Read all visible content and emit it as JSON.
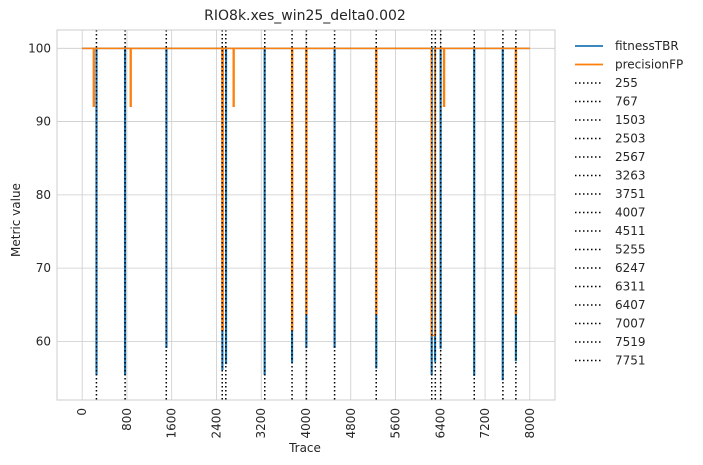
{
  "chart_data": {
    "type": "line",
    "title": "RIO8k.xes_win25_delta0.002",
    "xlabel": "Trace",
    "ylabel": "Metric value",
    "xlim": [
      -450,
      8450
    ],
    "ylim": [
      52,
      102.5
    ],
    "xticks": [
      0,
      800,
      1600,
      2400,
      3200,
      4000,
      4800,
      5600,
      6400,
      7200,
      8000
    ],
    "yticks": [
      60,
      70,
      80,
      90,
      100
    ],
    "grid": true,
    "legend_position": "outside-right",
    "colors": {
      "fitnessTBR": "#1f77b4",
      "precisionFP": "#ff7f0e",
      "drift": "#000000",
      "grid": "#cccccc"
    },
    "series": [
      {
        "name": "fitnessTBR",
        "color": "#1f77b4",
        "x": [
          0,
          250,
          250,
          262,
          262,
          760,
          760,
          772,
          772,
          1500,
          1500,
          1512,
          1512,
          2500,
          2500,
          2512,
          2512,
          2565,
          2565,
          2577,
          2577,
          3255,
          3255,
          3267,
          3267,
          3745,
          3745,
          3757,
          3757,
          4000,
          4000,
          4012,
          4012,
          4505,
          4505,
          4517,
          4517,
          5250,
          5250,
          5262,
          5262,
          6240,
          6240,
          6252,
          6252,
          6300,
          6300,
          6312,
          6312,
          6400,
          6400,
          6412,
          6412,
          7000,
          7000,
          7012,
          7012,
          7510,
          7510,
          7522,
          7522,
          7745,
          7745,
          7757,
          7757,
          8000
        ],
        "y": [
          100,
          100,
          55.5,
          55.5,
          100,
          100,
          55.5,
          55.5,
          100,
          100,
          59.2,
          59.2,
          100,
          100,
          56.2,
          56.2,
          100,
          100,
          57,
          57,
          100,
          100,
          55.5,
          55.5,
          100,
          100,
          57.2,
          57.2,
          100,
          100,
          59.2,
          59.2,
          100,
          100,
          59.2,
          59.2,
          100,
          100,
          56.4,
          56.4,
          100,
          100,
          55.5,
          55.5,
          100,
          100,
          57.3,
          57.3,
          100,
          100,
          59.1,
          59.1,
          100,
          100,
          55.4,
          55.4,
          100,
          100,
          54.8,
          54.8,
          100,
          100,
          57.4,
          57.4,
          100,
          100
        ]
      },
      {
        "name": "precisionFP",
        "color": "#ff7f0e",
        "x": [
          0,
          200,
          200,
          215,
          215,
          860,
          860,
          875,
          875,
          2700,
          2700,
          2715,
          2715,
          2500,
          2500,
          2520,
          2520,
          3745,
          3745,
          3760,
          3760,
          4000,
          4000,
          4015,
          4015,
          5250,
          5250,
          5265,
          5265,
          6240,
          6240,
          6300,
          6300,
          6460,
          6460,
          6475,
          6475,
          7745,
          7745,
          7760,
          7760,
          8000
        ],
        "y": [
          100,
          100,
          92.1,
          92.1,
          100,
          100,
          92.1,
          92.1,
          100,
          100,
          92.1,
          92.1,
          100,
          100,
          61.5,
          61.5,
          100,
          100,
          61.5,
          61.5,
          100,
          100,
          63.8,
          63.8,
          100,
          100,
          63.8,
          63.8,
          100,
          100,
          60.8,
          60.8,
          100,
          100,
          92.1,
          92.1,
          100,
          100,
          63.8,
          63.8,
          100,
          100
        ]
      }
    ],
    "drift_lines": [
      255,
      767,
      1503,
      2503,
      2567,
      3263,
      3751,
      4007,
      4511,
      5255,
      6247,
      6311,
      6407,
      7007,
      7519,
      7751
    ]
  }
}
